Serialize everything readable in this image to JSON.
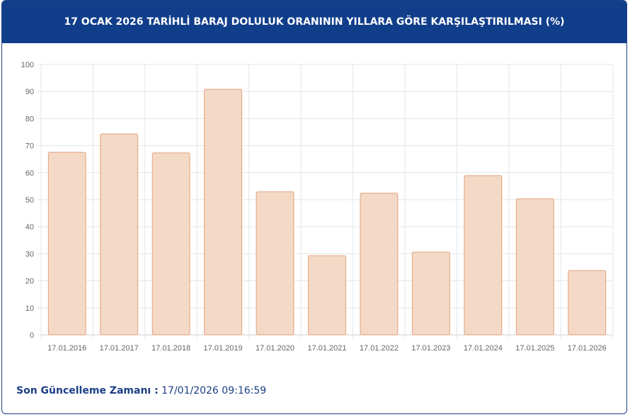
{
  "header": {
    "title": "17 OCAK 2026 TARİHLİ BARAJ DOLULUK ORANININ YILLARA GÖRE KARŞILAŞTIRILMASI (%)"
  },
  "chart_data": {
    "type": "bar",
    "categories": [
      "17.01.2016",
      "17.01.2017",
      "17.01.2018",
      "17.01.2019",
      "17.01.2020",
      "17.01.2021",
      "17.01.2022",
      "17.01.2023",
      "17.01.2024",
      "17.01.2025",
      "17.01.2026"
    ],
    "values": [
      67.5,
      74.3,
      67.3,
      90.8,
      52.9,
      29.3,
      52.4,
      30.6,
      58.9,
      50.3,
      23.8
    ],
    "color": "#f3d9c6",
    "edge_color": "#e2a27c",
    "ylim": [
      0,
      100
    ],
    "yticks": [
      0,
      10,
      20,
      30,
      40,
      50,
      60,
      70,
      80,
      90,
      100
    ],
    "grid": true
  },
  "footer": {
    "label": "Son Güncelleme Zamanı :",
    "value": "17/01/2026 09:16:59"
  }
}
